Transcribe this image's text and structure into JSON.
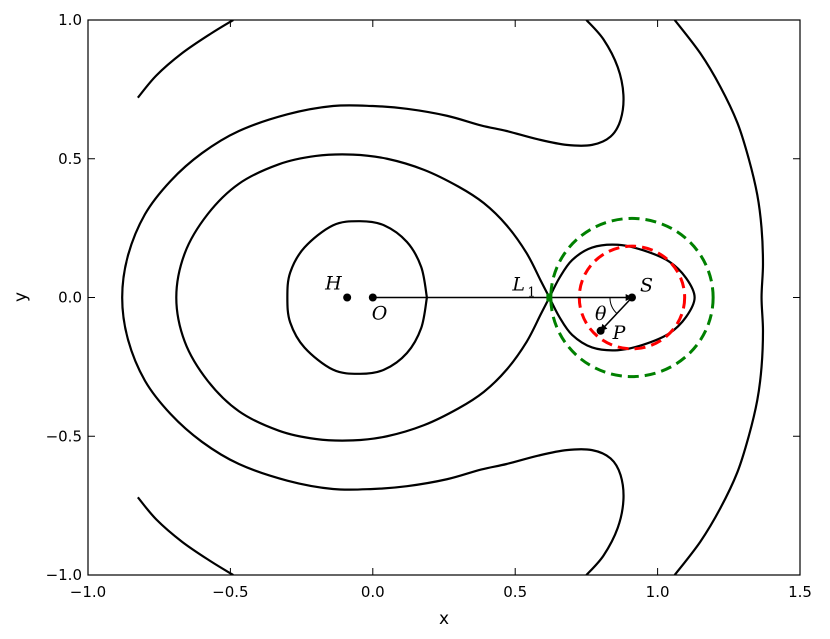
{
  "chart_data": {
    "type": "line",
    "title": "",
    "xlabel": "x",
    "ylabel": "y",
    "xlim": [
      -1.0,
      1.5
    ],
    "ylim": [
      -1.0,
      1.0
    ],
    "xticks": [
      -1.0,
      -0.5,
      0.0,
      0.5,
      1.0,
      1.5
    ],
    "yticks": [
      -1.0,
      -0.5,
      0.0,
      0.5,
      1.0
    ],
    "xtick_labels": [
      "−1.0",
      "−0.5",
      "0.0",
      "0.5",
      "1.0",
      "1.5"
    ],
    "ytick_labels": [
      "−1.0",
      "−0.5",
      "0.0",
      "0.5",
      "1.0"
    ],
    "grid": false,
    "colors": {
      "contour": "#000000",
      "roche_circle": "#ff0000",
      "outer_circle": "#008000",
      "l1_marker": "#008000"
    },
    "contours": [
      {
        "name": "",
        "points": [
          [
            0.19,
            0.0
          ],
          [
            0.17,
            0.11
          ],
          [
            0.12,
            0.2
          ],
          [
            0.04,
            0.26
          ],
          [
            -0.045,
            0.275
          ],
          [
            -0.14,
            0.26
          ],
          [
            -0.24,
            0.18
          ],
          [
            -0.29,
            0.09
          ],
          [
            -0.3,
            0.0
          ],
          [
            -0.29,
            -0.09
          ],
          [
            -0.24,
            -0.18
          ],
          [
            -0.14,
            -0.26
          ],
          [
            -0.045,
            -0.275
          ],
          [
            0.04,
            -0.26
          ],
          [
            0.12,
            -0.2
          ],
          [
            0.17,
            -0.11
          ],
          [
            0.19,
            0.0
          ]
        ]
      },
      {
        "name": "",
        "points": [
          [
            0.62,
            0.0
          ],
          [
            0.59,
            0.06
          ],
          [
            0.54,
            0.16
          ],
          [
            0.47,
            0.26
          ],
          [
            0.39,
            0.34
          ],
          [
            0.3,
            0.4
          ],
          [
            0.18,
            0.46
          ],
          [
            0.05,
            0.5
          ],
          [
            -0.07,
            0.515
          ],
          [
            -0.2,
            0.51
          ],
          [
            -0.33,
            0.48
          ],
          [
            -0.47,
            0.41
          ],
          [
            -0.58,
            0.3
          ],
          [
            -0.66,
            0.16
          ],
          [
            -0.69,
            0.0
          ],
          [
            -0.66,
            -0.16
          ],
          [
            -0.58,
            -0.3
          ],
          [
            -0.47,
            -0.41
          ],
          [
            -0.33,
            -0.48
          ],
          [
            -0.2,
            -0.51
          ],
          [
            -0.07,
            -0.515
          ],
          [
            0.05,
            -0.5
          ],
          [
            0.18,
            -0.46
          ],
          [
            0.3,
            -0.4
          ],
          [
            0.39,
            -0.34
          ],
          [
            0.47,
            -0.26
          ],
          [
            0.54,
            -0.16
          ],
          [
            0.59,
            -0.06
          ],
          [
            0.62,
            0.0
          ]
        ]
      },
      {
        "name": "",
        "points": [
          [
            0.62,
            0.0
          ],
          [
            0.655,
            0.07
          ],
          [
            0.7,
            0.135
          ],
          [
            0.77,
            0.18
          ],
          [
            0.86,
            0.19
          ],
          [
            0.95,
            0.17
          ],
          [
            1.04,
            0.13
          ],
          [
            1.1,
            0.07
          ],
          [
            1.13,
            0.0
          ],
          [
            1.1,
            -0.07
          ],
          [
            1.04,
            -0.13
          ],
          [
            0.95,
            -0.17
          ],
          [
            0.86,
            -0.19
          ],
          [
            0.77,
            -0.18
          ],
          [
            0.7,
            -0.135
          ],
          [
            0.655,
            -0.07
          ],
          [
            0.62,
            0.0
          ]
        ]
      },
      {
        "name": "",
        "points": [
          [
            -0.825,
            0.72
          ],
          [
            -0.76,
            0.8
          ],
          [
            -0.67,
            0.88
          ],
          [
            -0.57,
            0.95
          ],
          [
            -0.49,
            1.0
          ]
        ]
      },
      {
        "name": "",
        "points": [
          [
            -0.825,
            -0.72
          ],
          [
            -0.76,
            -0.8
          ],
          [
            -0.67,
            -0.88
          ],
          [
            -0.57,
            -0.95
          ],
          [
            -0.49,
            -1.0
          ]
        ]
      },
      {
        "name": "",
        "points": [
          [
            0.75,
            1.0
          ],
          [
            0.81,
            0.93
          ],
          [
            0.86,
            0.83
          ],
          [
            0.88,
            0.73
          ],
          [
            0.87,
            0.64
          ],
          [
            0.835,
            0.58
          ],
          [
            0.77,
            0.55
          ],
          [
            0.68,
            0.55
          ],
          [
            0.58,
            0.57
          ],
          [
            0.47,
            0.6
          ],
          [
            0.38,
            0.62
          ],
          [
            0.26,
            0.655
          ],
          [
            0.12,
            0.68
          ],
          [
            0.0,
            0.69
          ],
          [
            -0.14,
            0.69
          ],
          [
            -0.3,
            0.66
          ],
          [
            -0.47,
            0.6
          ],
          [
            -0.6,
            0.52
          ],
          [
            -0.71,
            0.42
          ],
          [
            -0.8,
            0.3
          ],
          [
            -0.86,
            0.15
          ],
          [
            -0.88,
            0.0
          ],
          [
            -0.86,
            -0.15
          ],
          [
            -0.8,
            -0.3
          ],
          [
            -0.71,
            -0.42
          ],
          [
            -0.6,
            -0.52
          ],
          [
            -0.47,
            -0.6
          ],
          [
            -0.3,
            -0.66
          ],
          [
            -0.14,
            -0.69
          ],
          [
            0.0,
            -0.69
          ],
          [
            0.12,
            -0.68
          ],
          [
            0.26,
            -0.655
          ],
          [
            0.38,
            -0.62
          ],
          [
            0.47,
            -0.6
          ],
          [
            0.58,
            -0.57
          ],
          [
            0.68,
            -0.55
          ],
          [
            0.77,
            -0.55
          ],
          [
            0.835,
            -0.58
          ],
          [
            0.87,
            -0.64
          ],
          [
            0.88,
            -0.73
          ],
          [
            0.86,
            -0.83
          ],
          [
            0.81,
            -0.93
          ],
          [
            0.75,
            -1.0
          ]
        ]
      },
      {
        "name": "",
        "points": [
          [
            1.06,
            1.0
          ],
          [
            1.15,
            0.88
          ],
          [
            1.22,
            0.76
          ],
          [
            1.28,
            0.63
          ],
          [
            1.32,
            0.5
          ],
          [
            1.35,
            0.37
          ],
          [
            1.365,
            0.25
          ],
          [
            1.37,
            0.12
          ],
          [
            1.365,
            0.0
          ],
          [
            1.37,
            -0.12
          ],
          [
            1.365,
            -0.25
          ],
          [
            1.35,
            -0.37
          ],
          [
            1.32,
            -0.5
          ],
          [
            1.28,
            -0.63
          ],
          [
            1.22,
            -0.76
          ],
          [
            1.15,
            -0.88
          ],
          [
            1.06,
            -1.0
          ]
        ]
      }
    ],
    "circles": [
      {
        "name": "",
        "center": [
          0.91,
          0.0
        ],
        "radius": 0.185,
        "color": "#ff0000",
        "dashed": true
      },
      {
        "name": "",
        "center": [
          0.91,
          0.0
        ],
        "radius": 0.285,
        "color": "#008000",
        "dashed": true
      }
    ],
    "points": [
      {
        "label": "H",
        "x": -0.09,
        "y": 0.0
      },
      {
        "label": "O",
        "x": 0.0,
        "y": 0.0
      },
      {
        "label": "S",
        "x": 0.91,
        "y": 0.0
      },
      {
        "label": "P",
        "x": 0.8,
        "y": -0.12
      }
    ],
    "l1": {
      "label": "L",
      "subscript": "1",
      "x": 0.62,
      "y": 0.0
    },
    "theta_label": "θ",
    "arrows": [
      {
        "from": [
          0.0,
          0.0
        ],
        "to": [
          0.91,
          0.0
        ]
      },
      {
        "from": [
          0.91,
          0.0
        ],
        "to": [
          0.8,
          -0.12
        ]
      }
    ]
  }
}
